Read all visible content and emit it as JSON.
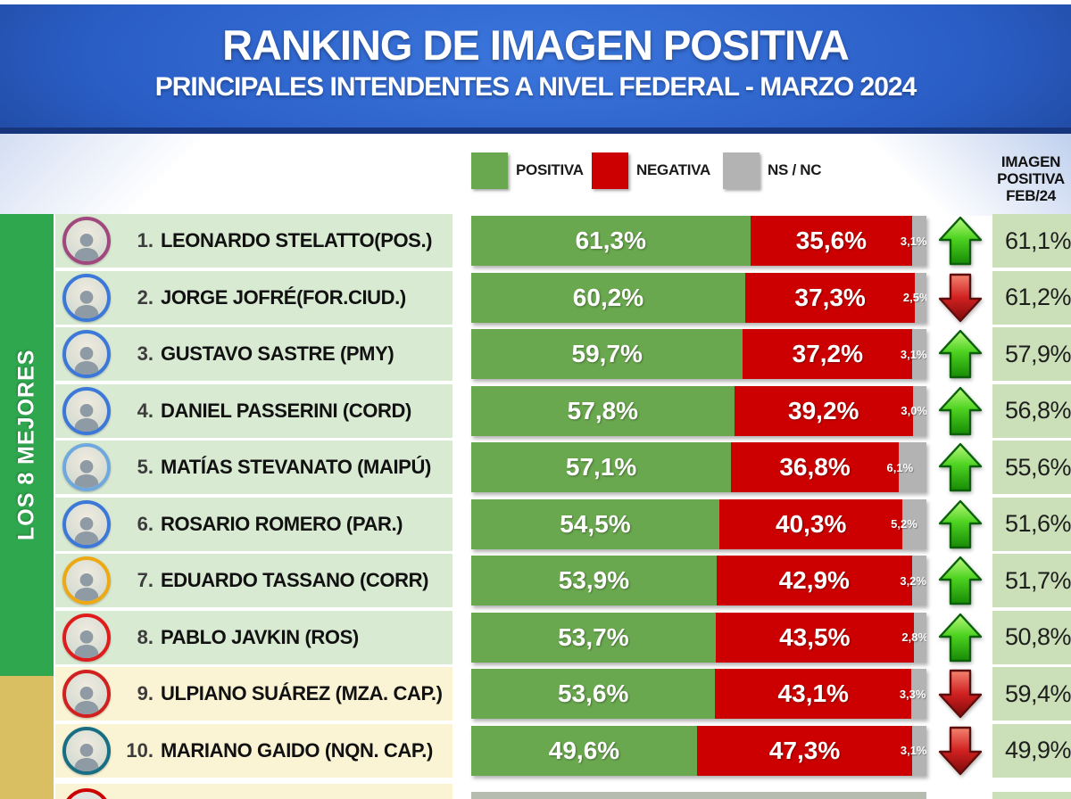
{
  "header": {
    "title": "RANKING DE IMAGEN POSITIVA",
    "subtitle": "PRINCIPALES INTENDENTES A NIVEL FEDERAL - MARZO 2024"
  },
  "legend": {
    "items": [
      {
        "label": "POSITIVA",
        "color": "#6aa84f"
      },
      {
        "label": "NEGATIVA",
        "color": "#cc0000"
      },
      {
        "label": "NS / NC",
        "color": "#b3b3b3"
      }
    ]
  },
  "prev_header": {
    "line1": "IMAGEN",
    "line2": "POSITIVA",
    "line3": "FEB/24"
  },
  "side_label": "LOS 8 MEJORES",
  "colors": {
    "positiva": "#6aa84f",
    "negativa": "#cc0000",
    "nsnc": "#b3b3b3",
    "band_top8": "#2fa74e",
    "band_rest": "#d9bf62",
    "row_bg_top8": "#d9ead3",
    "row_bg_rest": "#fbf4d4",
    "prev_cell_bg": "#cbe0b8",
    "header_blue_light": "#3b76dd",
    "header_blue_dark": "#16367e"
  },
  "chart_data": {
    "type": "bar",
    "stacked": true,
    "orientation": "horizontal",
    "series_labels": [
      "POSITIVA",
      "NEGATIVA",
      "NS / NC"
    ],
    "axis_range": [
      0,
      100
    ],
    "title": "RANKING DE IMAGEN POSITIVA",
    "subtitle": "PRINCIPALES INTENDENTES A NIVEL FEDERAL - MARZO 2024",
    "prev_column_title": "IMAGEN POSITIVA FEB/24",
    "group_label_top8": "LOS 8 MEJORES",
    "rows": [
      {
        "rank": "1.",
        "name": "LEONARDO STELATTO(POS.)",
        "positiva": 61.3,
        "negativa": 35.6,
        "nsnc": 3.1,
        "positiva_label": "61,3%",
        "negativa_label": "35,6%",
        "nsnc_label": "3,1%",
        "trend": "up",
        "prev_label": "61,1%",
        "ring_color": "#a0487d",
        "group": "top8"
      },
      {
        "rank": "2.",
        "name": "JORGE JOFRÉ(FOR.CIUD.)",
        "positiva": 60.2,
        "negativa": 37.3,
        "nsnc": 2.5,
        "positiva_label": "60,2%",
        "negativa_label": "37,3%",
        "nsnc_label": "2,5%",
        "trend": "down",
        "prev_label": "61,2%",
        "ring_color": "#3c78d8",
        "group": "top8"
      },
      {
        "rank": "3.",
        "name": "GUSTAVO SASTRE (PMY)",
        "positiva": 59.7,
        "negativa": 37.2,
        "nsnc": 3.1,
        "positiva_label": "59,7%",
        "negativa_label": "37,2%",
        "nsnc_label": "3,1%",
        "trend": "up",
        "prev_label": "57,9%",
        "ring_color": "#3c78d8",
        "group": "top8"
      },
      {
        "rank": "4.",
        "name": "DANIEL PASSERINI (CORD)",
        "positiva": 57.8,
        "negativa": 39.2,
        "nsnc": 3.0,
        "positiva_label": "57,8%",
        "negativa_label": "39,2%",
        "nsnc_label": "3,0%",
        "trend": "up",
        "prev_label": "56,8%",
        "ring_color": "#3c78d8",
        "group": "top8"
      },
      {
        "rank": "5.",
        "name": "MATÍAS STEVANATO (MAIPÚ)",
        "positiva": 57.1,
        "negativa": 36.8,
        "nsnc": 6.1,
        "positiva_label": "57,1%",
        "negativa_label": "36,8%",
        "nsnc_label": "6,1%",
        "trend": "up",
        "prev_label": "55,6%",
        "ring_color": "#6fa8dc",
        "group": "top8"
      },
      {
        "rank": "6.",
        "name": "ROSARIO ROMERO (PAR.)",
        "positiva": 54.5,
        "negativa": 40.3,
        "nsnc": 5.2,
        "positiva_label": "54,5%",
        "negativa_label": "40,3%",
        "nsnc_label": "5,2%",
        "trend": "up",
        "prev_label": "51,6%",
        "ring_color": "#3c78d8",
        "group": "top8"
      },
      {
        "rank": "7.",
        "name": "EDUARDO TASSANO (CORR)",
        "positiva": 53.9,
        "negativa": 42.9,
        "nsnc": 3.2,
        "positiva_label": "53,9%",
        "negativa_label": "42,9%",
        "nsnc_label": "3,2%",
        "trend": "up",
        "prev_label": "51,7%",
        "ring_color": "#eda913",
        "group": "top8"
      },
      {
        "rank": "8.",
        "name": "PABLO JAVKIN (ROS)",
        "positiva": 53.7,
        "negativa": 43.5,
        "nsnc": 2.8,
        "positiva_label": "53,7%",
        "negativa_label": "43,5%",
        "nsnc_label": "2,8%",
        "trend": "up",
        "prev_label": "50,8%",
        "ring_color": "#df1b1b",
        "group": "top8"
      },
      {
        "rank": "9.",
        "name": "ULPIANO SUÁREZ (MZA. CAP.)",
        "positiva": 53.6,
        "negativa": 43.1,
        "nsnc": 3.3,
        "positiva_label": "53,6%",
        "negativa_label": "43,1%",
        "nsnc_label": "3,3%",
        "trend": "down",
        "prev_label": "59,4%",
        "ring_color": "#d02020",
        "group": "rest"
      },
      {
        "rank": "10.",
        "name": "MARIANO GAIDO (NQN. CAP.)",
        "positiva": 49.6,
        "negativa": 47.3,
        "nsnc": 3.1,
        "positiva_label": "49,6%",
        "negativa_label": "47,3%",
        "nsnc_label": "3,1%",
        "trend": "down",
        "prev_label": "49,9%",
        "ring_color": "#186f83",
        "group": "rest"
      }
    ]
  }
}
